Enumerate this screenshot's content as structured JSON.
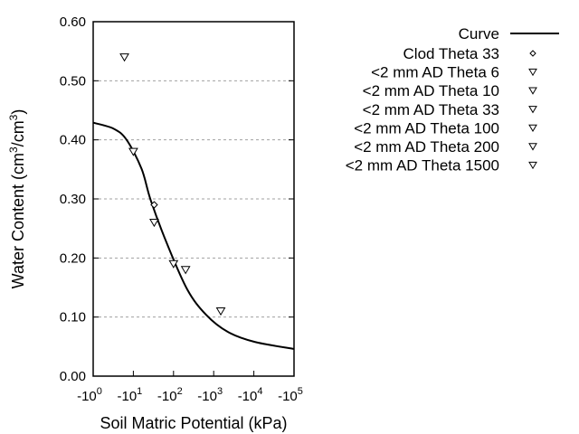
{
  "chart_data": {
    "type": "scatter",
    "xlabel": "Soil Matric Potential (kPa)",
    "ylabel_parts": [
      "Water Content (cm",
      "3",
      "/cm",
      "3",
      ")"
    ],
    "x_scale": "log",
    "xlim": [
      1,
      100000
    ],
    "ylim": [
      0.0,
      0.6
    ],
    "x_ticks": [
      {
        "value": 1,
        "base": "-10",
        "exp": "0"
      },
      {
        "value": 10,
        "base": "-10",
        "exp": "1"
      },
      {
        "value": 100,
        "base": "-10",
        "exp": "2"
      },
      {
        "value": 1000,
        "base": "-10",
        "exp": "3"
      },
      {
        "value": 10000,
        "base": "-10",
        "exp": "4"
      },
      {
        "value": 100000,
        "base": "-10",
        "exp": "5"
      }
    ],
    "y_ticks": [
      "0.00",
      "0.10",
      "0.20",
      "0.30",
      "0.40",
      "0.50",
      "0.60"
    ],
    "grid": "horizontal dotted",
    "legend_position": "right",
    "curve": {
      "name": "Curve",
      "x": [
        1,
        3.2,
        6.8,
        16,
        27,
        69,
        219,
        645,
        2240,
        10500,
        100000
      ],
      "y": [
        0.429,
        0.419,
        0.4,
        0.351,
        0.298,
        0.224,
        0.147,
        0.104,
        0.075,
        0.058,
        0.046
      ]
    },
    "series": [
      {
        "name": "Clod Theta 33",
        "marker": "diamond",
        "x": [
          33
        ],
        "y": [
          0.29
        ]
      },
      {
        "name": "<2 mm AD Theta 6",
        "marker": "triangle-down",
        "x": [
          6
        ],
        "y": [
          0.54
        ]
      },
      {
        "name": "<2 mm AD Theta 10",
        "marker": "triangle-down",
        "x": [
          10
        ],
        "y": [
          0.38
        ]
      },
      {
        "name": "<2 mm AD Theta 33",
        "marker": "triangle-down",
        "x": [
          33
        ],
        "y": [
          0.26
        ]
      },
      {
        "name": "<2 mm AD Theta 100",
        "marker": "triangle-down",
        "x": [
          100
        ],
        "y": [
          0.19
        ]
      },
      {
        "name": "<2 mm AD Theta 200",
        "marker": "triangle-down",
        "x": [
          200
        ],
        "y": [
          0.18
        ]
      },
      {
        "name": "<2 mm AD Theta 1500",
        "marker": "triangle-down",
        "x": [
          1500
        ],
        "y": [
          0.11
        ]
      }
    ],
    "colors": {
      "line": "#000000",
      "grid": "#a0a0a0"
    }
  }
}
